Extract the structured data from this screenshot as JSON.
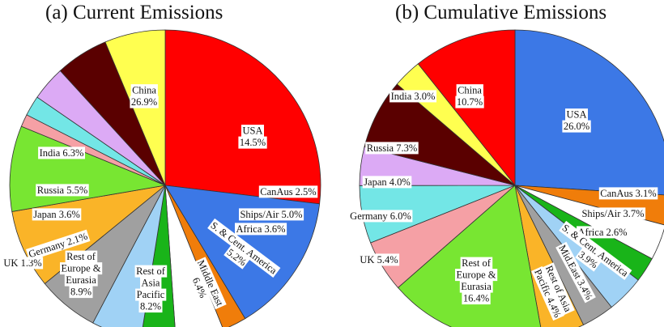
{
  "chart_data": [
    {
      "type": "pie",
      "title": "(a)  Current Emissions",
      "start_angle_deg": 90,
      "direction": "clockwise",
      "slices": [
        {
          "label": [
            "China",
            "26.9%"
          ],
          "value": 26.9,
          "color": "#ff0000"
        },
        {
          "label": [
            "USA",
            "14.5%"
          ],
          "value": 14.5,
          "color": "#3c78e6"
        },
        {
          "label": [
            "CanAus 2.5%"
          ],
          "value": 2.5,
          "color": "#f07d0a"
        },
        {
          "label": [
            "Ships/Air 5.0%"
          ],
          "value": 5.0,
          "color": "#ffffff"
        },
        {
          "label": [
            "Africa 3.6%"
          ],
          "value": 3.6,
          "color": "#19b419"
        },
        {
          "label": [
            "S. & Cent. America",
            "5.2%"
          ],
          "value": 5.2,
          "color": "#a0d2f5"
        },
        {
          "label": [
            "Middle East",
            "6.4%"
          ],
          "value": 6.4,
          "color": "#a0a0a0"
        },
        {
          "label": [
            "Rest of",
            "Asia",
            "Pacific",
            "8.2%"
          ],
          "value": 8.2,
          "color": "#fab428"
        },
        {
          "label": [
            "Rest of",
            "Europe &",
            "Eurasia",
            "8.9%"
          ],
          "value": 8.9,
          "color": "#78e632"
        },
        {
          "label": [
            "UK 1.3%"
          ],
          "value": 1.3,
          "color": "#f5a0a5"
        },
        {
          "label": [
            "Germany 2.1%"
          ],
          "value": 2.1,
          "color": "#73e6e6"
        },
        {
          "label": [
            "Japan 3.6%"
          ],
          "value": 3.6,
          "color": "#dcaaf5"
        },
        {
          "label": [
            "Russia 5.5%"
          ],
          "value": 5.5,
          "color": "#5a0000"
        },
        {
          "label": [
            "India 6.3%"
          ],
          "value": 6.3,
          "color": "#ffff50"
        }
      ]
    },
    {
      "type": "pie",
      "title": "(b)  Cumulative Emissions",
      "start_angle_deg": 90,
      "direction": "clockwise",
      "slices": [
        {
          "label": [
            "USA",
            "26.0%"
          ],
          "value": 26.0,
          "color": "#3c78e6"
        },
        {
          "label": [
            "CanAus 3.1%"
          ],
          "value": 3.1,
          "color": "#f07d0a"
        },
        {
          "label": [
            "Ships/Air 3.7%"
          ],
          "value": 3.7,
          "color": "#ffffff"
        },
        {
          "label": [
            "Africa 2.6%"
          ],
          "value": 2.6,
          "color": "#19b419"
        },
        {
          "label": [
            "S. & Cent. America",
            "3.9%"
          ],
          "value": 3.9,
          "color": "#a0d2f5"
        },
        {
          "label": [
            "Mid.East 3.4%"
          ],
          "value": 3.4,
          "color": "#a0a0a0"
        },
        {
          "label": [
            "Rest of Asia",
            "Pacific 4.4%"
          ],
          "value": 4.4,
          "color": "#fab428"
        },
        {
          "label": [
            "Rest of",
            "Europe &",
            "Eurasia",
            "16.4%"
          ],
          "value": 16.4,
          "color": "#78e632"
        },
        {
          "label": [
            "UK 5.4%"
          ],
          "value": 5.4,
          "color": "#f5a0a5"
        },
        {
          "label": [
            "Germany 6.0%"
          ],
          "value": 6.0,
          "color": "#73e6e6"
        },
        {
          "label": [
            "Japan 4.0%"
          ],
          "value": 4.0,
          "color": "#dcaaf5"
        },
        {
          "label": [
            "Russia 7.3%"
          ],
          "value": 7.3,
          "color": "#5a0000"
        },
        {
          "label": [
            "India 3.0%"
          ],
          "value": 3.0,
          "color": "#ffff50"
        },
        {
          "label": [
            "China",
            "10.7%"
          ],
          "value": 10.7,
          "color": "#ff0000"
        }
      ]
    }
  ]
}
